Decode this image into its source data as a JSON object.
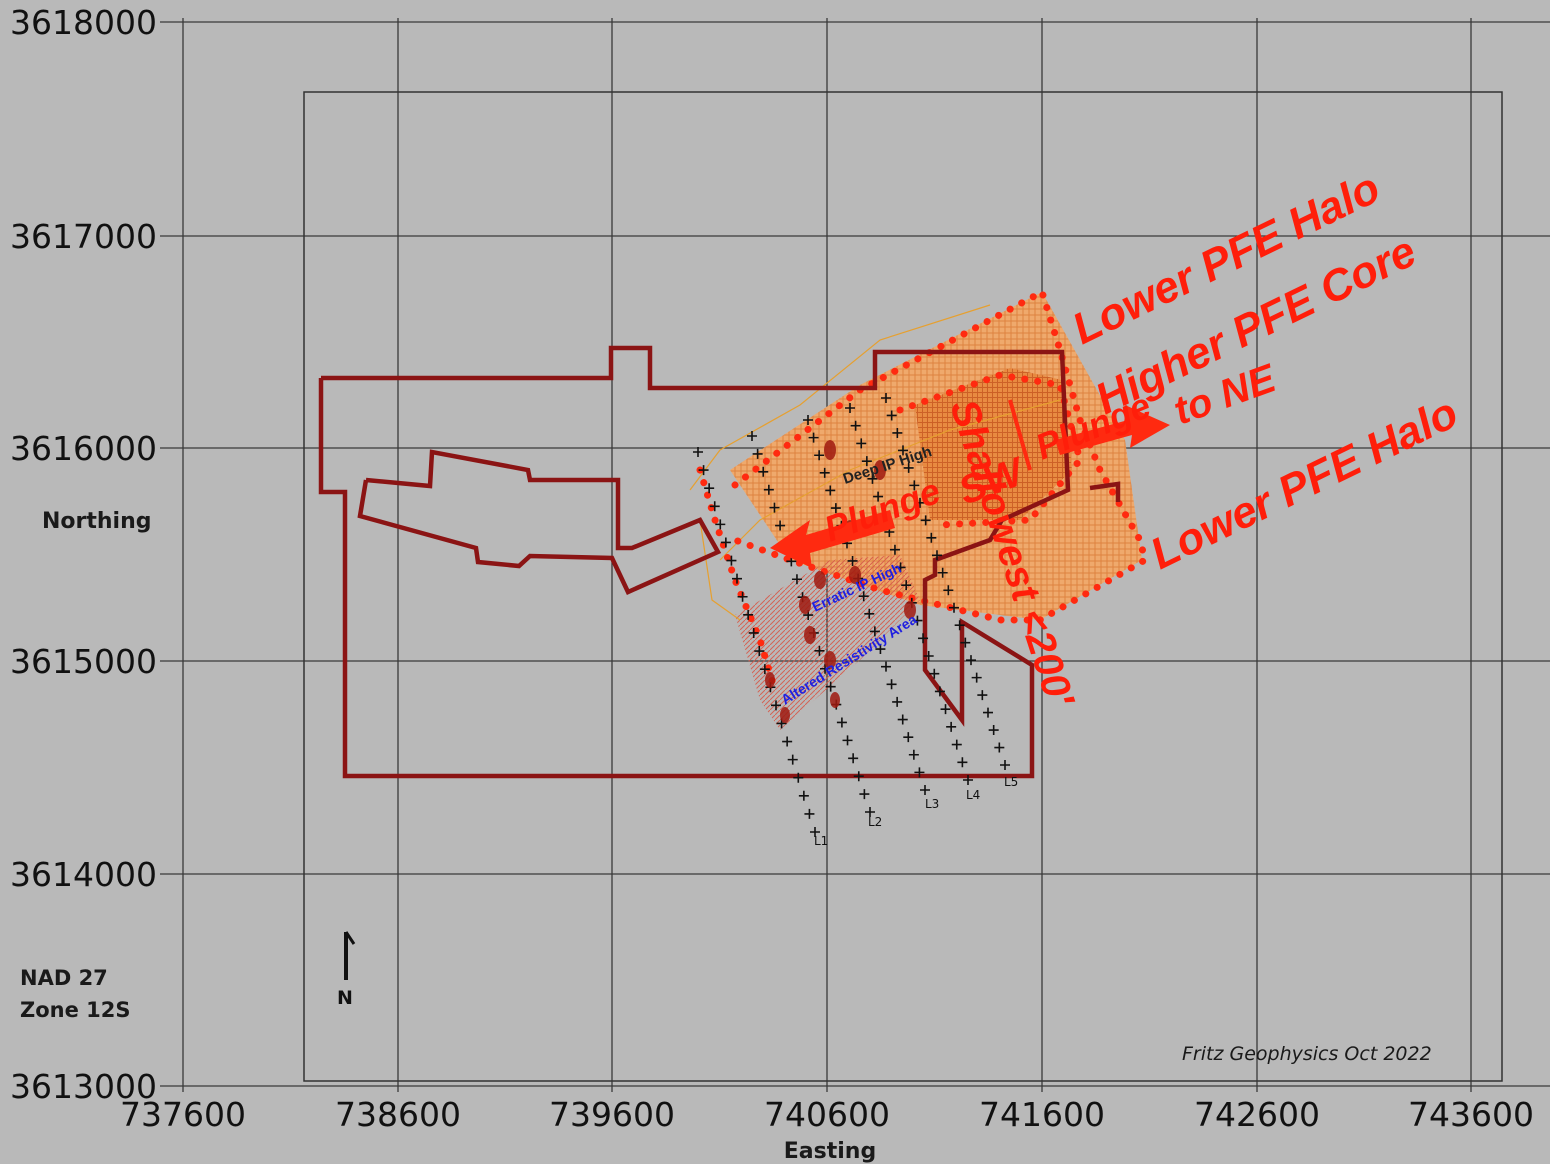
{
  "axes": {
    "northing_ticks": [
      "3618000",
      "3617000",
      "3616000",
      "3615000",
      "3614000",
      "3613000"
    ],
    "easting_ticks": [
      "737600",
      "738600",
      "739600",
      "740600",
      "741600",
      "742600",
      "743600"
    ],
    "y_title": "Northing",
    "x_title": "Easting"
  },
  "datum": {
    "line1": "NAD 27",
    "line2": "Zone 12S"
  },
  "north_arrow": {
    "label": "N",
    "icon": "north-arrow-icon"
  },
  "credit": "Fritz Geophysics Oct 2022",
  "interpretation": {
    "halo_upper": "Lower PFE Halo",
    "core": "Higher PFE Core",
    "plunge_ne_1": "Plunge",
    "plunge_ne_2": "to NE",
    "halo_lower": "Lower PFE Halo",
    "shallowest": "Shallowest <200'",
    "plunge_sw_1": "Plunge",
    "plunge_sw_2": "SW"
  },
  "anomalies": {
    "deep_ip": "Deep IP High",
    "erratic_ip": "Erratic IP High",
    "altered": "Altered Resistivity Area"
  },
  "survey_lines": [
    "L1",
    "L2",
    "L3",
    "L4",
    "L5"
  ],
  "colors": {
    "background": "#b9b9b9",
    "grid": "#3a3a3a",
    "claim_outline": "#8b1414",
    "pfe_zone_fill": "#f0a060",
    "pfe_core_fill": "#e07830",
    "interpretation_red": "#ff1e0a",
    "anomaly_blue": "#2020e0"
  }
}
